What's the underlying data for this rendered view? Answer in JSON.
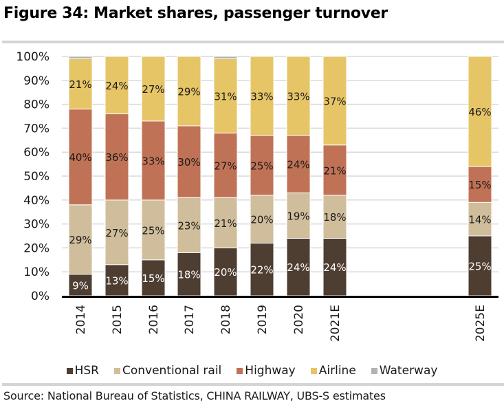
{
  "figure": {
    "title": "Figure 34: Market shares, passenger turnover",
    "source": "Source:  National Bureau of Statistics, CHINA RAILWAY, UBS-S estimates"
  },
  "chart_data": {
    "type": "bar",
    "stacked": true,
    "title": "Figure 34: Market shares, passenger turnover",
    "xlabel": "",
    "ylabel": "",
    "ylim": [
      0,
      100
    ],
    "yticks": [
      "0%",
      "10%",
      "20%",
      "30%",
      "40%",
      "50%",
      "60%",
      "70%",
      "80%",
      "90%",
      "100%"
    ],
    "grid": true,
    "legend_position": "bottom",
    "categories": [
      "2014",
      "2015",
      "2016",
      "2017",
      "2018",
      "2019",
      "2020",
      "2021E",
      "2025E"
    ],
    "series": [
      {
        "name": "HSR",
        "color": "#4e3d31",
        "label_color": "#ffffff",
        "values": [
          9,
          13,
          15,
          18,
          20,
          22,
          24,
          24,
          25
        ]
      },
      {
        "name": "Conventional rail",
        "color": "#d0bd9b",
        "label_color": "#1a1a1a",
        "values": [
          29,
          27,
          25,
          23,
          21,
          20,
          19,
          18,
          14
        ]
      },
      {
        "name": "Highway",
        "color": "#c07256",
        "label_color": "#1a1a1a",
        "values": [
          40,
          36,
          33,
          30,
          27,
          25,
          24,
          21,
          15
        ]
      },
      {
        "name": "Airline",
        "color": "#e6c567",
        "label_color": "#1a1a1a",
        "values": [
          21,
          24,
          27,
          29,
          31,
          33,
          33,
          37,
          46
        ]
      },
      {
        "name": "Waterway",
        "color": "#b2b2b2",
        "label_color": "#1a1a1a",
        "values": [
          1,
          0,
          0,
          0,
          1,
          0,
          0,
          0,
          0
        ]
      }
    ],
    "data_labels": {
      "HSR": [
        "9%",
        "13%",
        "15%",
        "18%",
        "20%",
        "22%",
        "24%",
        "24%",
        "25%"
      ],
      "Conventional rail": [
        "29%",
        "27%",
        "25%",
        "23%",
        "21%",
        "20%",
        "19%",
        "18%",
        "14%"
      ],
      "Highway": [
        "40%",
        "36%",
        "33%",
        "30%",
        "27%",
        "25%",
        "24%",
        "21%",
        "15%"
      ],
      "Airline": [
        "21%",
        "24%",
        "27%",
        "29%",
        "31%",
        "33%",
        "33%",
        "37%",
        "46%"
      ]
    }
  },
  "legend": [
    {
      "label": "HSR",
      "color": "#4e3d31"
    },
    {
      "label": "Conventional rail",
      "color": "#d0bd9b"
    },
    {
      "label": "Highway",
      "color": "#c07256"
    },
    {
      "label": "Airline",
      "color": "#e6c567"
    },
    {
      "label": "Waterway",
      "color": "#b2b2b2"
    }
  ]
}
